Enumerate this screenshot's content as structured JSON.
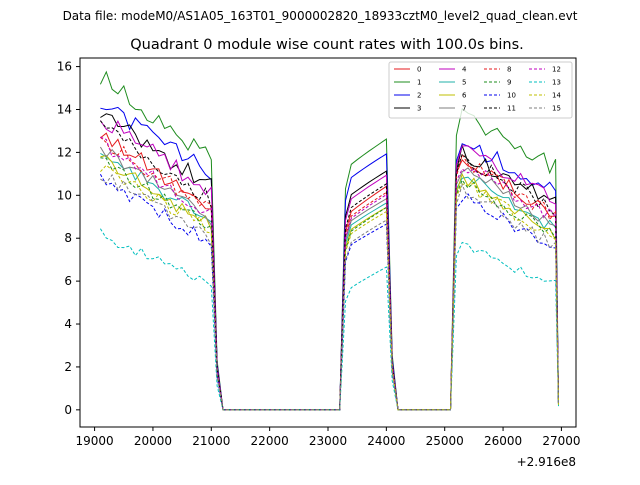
{
  "chart_data": {
    "type": "line",
    "suptitle": "Data file: modeM0/AS1A05_163T01_9000002820_18933cztM0_level2_quad_clean.evt",
    "title": "Quadrant 0 module wise count rates with 100.0s bins.",
    "xlabel": "",
    "ylabel": "",
    "x_offset_label": "+2.916e8",
    "xlim": [
      18750,
      27250
    ],
    "ylim": [
      -0.8,
      16.4
    ],
    "x_ticks": [
      19000,
      20000,
      21000,
      22000,
      23000,
      24000,
      25000,
      26000,
      27000
    ],
    "x_tick_labels": [
      "19000",
      "20000",
      "21000",
      "22000",
      "23000",
      "24000",
      "25000",
      "26000",
      "27000"
    ],
    "y_ticks": [
      0,
      2,
      4,
      6,
      8,
      10,
      12,
      14,
      16
    ],
    "y_tick_labels": [
      "0",
      "2",
      "4",
      "6",
      "8",
      "10",
      "12",
      "14",
      "16"
    ],
    "legend_position": "top-right",
    "segments": [
      {
        "start": 19100,
        "end": 21100,
        "step": 100
      },
      {
        "start": 23300,
        "end": 24100,
        "step": 100
      },
      {
        "start": 25200,
        "end": 26900,
        "step": 100
      }
    ],
    "gap_level": 0,
    "series": [
      {
        "name": "0",
        "color": "#e41a1c",
        "dash": "solid",
        "segment_levels": [
          [
            13.0,
            9.0
          ],
          [
            9.0,
            10.6
          ],
          [
            12.0,
            9.0
          ]
        ]
      },
      {
        "name": "1",
        "color": "#1e8c1e",
        "dash": "solid",
        "segment_levels": [
          [
            15.5,
            11.5
          ],
          [
            11.2,
            12.8
          ],
          [
            13.9,
            11.3
          ]
        ]
      },
      {
        "name": "2",
        "color": "#0000ee",
        "dash": "solid",
        "segment_levels": [
          [
            14.3,
            10.8
          ],
          [
            10.6,
            12.1
          ],
          [
            12.6,
            10.3
          ]
        ]
      },
      {
        "name": "3",
        "color": "#000000",
        "dash": "solid",
        "segment_levels": [
          [
            13.8,
            10.2
          ],
          [
            9.8,
            11.3
          ],
          [
            12.1,
            9.7
          ]
        ]
      },
      {
        "name": "4",
        "color": "#bf00bf",
        "dash": "solid",
        "segment_levels": [
          [
            13.6,
            10.0
          ],
          [
            9.6,
            11.1
          ],
          [
            12.4,
            9.8
          ]
        ]
      },
      {
        "name": "5",
        "color": "#20b2aa",
        "dash": "solid",
        "segment_levels": [
          [
            12.0,
            8.6
          ],
          [
            8.4,
            9.8
          ],
          [
            11.2,
            8.4
          ]
        ]
      },
      {
        "name": "6",
        "color": "#bfbf00",
        "dash": "solid",
        "segment_levels": [
          [
            11.8,
            8.4
          ],
          [
            8.2,
            9.6
          ],
          [
            11.0,
            8.2
          ]
        ]
      },
      {
        "name": "7",
        "color": "#7f7f7f",
        "dash": "solid",
        "segment_levels": [
          [
            12.2,
            8.8
          ],
          [
            8.6,
            10.0
          ],
          [
            11.4,
            8.6
          ]
        ]
      },
      {
        "name": "8",
        "color": "#e41a1c",
        "dash": "dashed",
        "segment_levels": [
          [
            12.6,
            9.2
          ],
          [
            8.8,
            10.3
          ],
          [
            11.8,
            9.0
          ]
        ]
      },
      {
        "name": "9",
        "color": "#1e8c1e",
        "dash": "dashed",
        "segment_levels": [
          [
            11.6,
            8.4
          ],
          [
            8.1,
            9.6
          ],
          [
            10.9,
            8.1
          ]
        ]
      },
      {
        "name": "10",
        "color": "#0000ee",
        "dash": "dashed",
        "segment_levels": [
          [
            10.8,
            7.6
          ],
          [
            7.5,
            8.8
          ],
          [
            10.2,
            7.4
          ]
        ]
      },
      {
        "name": "11",
        "color": "#000000",
        "dash": "dashed",
        "segment_levels": [
          [
            13.2,
            9.6
          ],
          [
            9.2,
            10.7
          ],
          [
            12.0,
            9.3
          ]
        ]
      },
      {
        "name": "12",
        "color": "#bf00bf",
        "dash": "dashed",
        "segment_levels": [
          [
            12.4,
            9.0
          ],
          [
            8.7,
            10.2
          ],
          [
            11.6,
            8.9
          ]
        ]
      },
      {
        "name": "13",
        "color": "#00bfbf",
        "dash": "dashed",
        "segment_levels": [
          [
            8.2,
            5.6
          ],
          [
            5.5,
            6.8
          ],
          [
            7.8,
            5.8
          ]
        ]
      },
      {
        "name": "14",
        "color": "#bfbf00",
        "dash": "dashed",
        "segment_levels": [
          [
            11.4,
            8.2
          ],
          [
            8.0,
            9.4
          ],
          [
            10.8,
            8.0
          ]
        ]
      },
      {
        "name": "15",
        "color": "#7f7f7f",
        "dash": "dashed",
        "segment_levels": [
          [
            11.0,
            7.8
          ],
          [
            7.6,
            9.0
          ],
          [
            10.4,
            7.6
          ]
        ]
      }
    ]
  }
}
